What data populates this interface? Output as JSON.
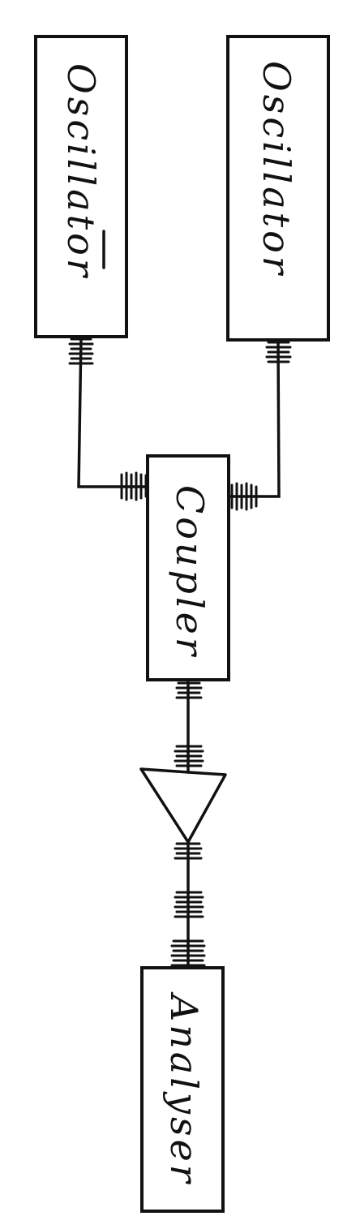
{
  "diagram": {
    "blocks": {
      "oscillator_left": "Oscillator",
      "oscillator_right": "Oscillator",
      "coupler": "Coupler",
      "amplifier": "",
      "analyser": "Analyser"
    },
    "connections": [
      [
        "oscillator_left",
        "coupler"
      ],
      [
        "oscillator_right",
        "coupler"
      ],
      [
        "coupler",
        "amplifier"
      ],
      [
        "amplifier",
        "analyser"
      ]
    ],
    "colors": {
      "ink": "#111111",
      "paper": "#ffffff"
    }
  }
}
